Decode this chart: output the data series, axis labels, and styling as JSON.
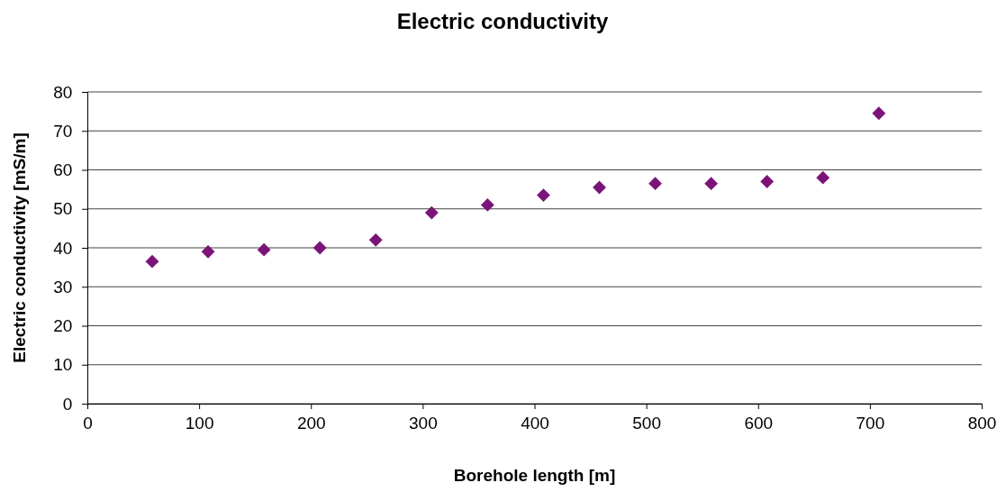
{
  "chart_data": {
    "type": "scatter",
    "title": "Electric conductivity",
    "xlabel": "Borehole length [m]",
    "ylabel": "Electric conductivity [mS/m]",
    "x": [
      58,
      108,
      158,
      208,
      258,
      308,
      358,
      408,
      458,
      508,
      558,
      608,
      658,
      708
    ],
    "series": [
      {
        "color": "#7b1478",
        "values": [
          36.5,
          39,
          39.5,
          40,
          42,
          49,
          51,
          53.5,
          55.5,
          56.5,
          56.5,
          57,
          58,
          74.5
        ]
      }
    ],
    "xlim": [
      0,
      800
    ],
    "xticks": [
      0,
      100,
      200,
      300,
      400,
      500,
      600,
      700,
      800
    ],
    "ylim": [
      0,
      80
    ],
    "yticks": [
      0,
      10,
      20,
      30,
      40,
      50,
      60,
      70,
      80
    ],
    "grid": "y",
    "marker": "diamond"
  }
}
